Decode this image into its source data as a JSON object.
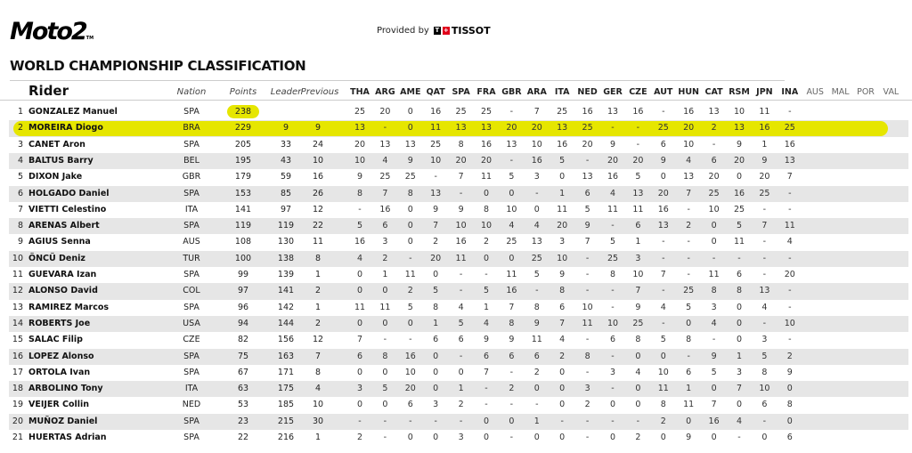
{
  "header": {
    "logo": "Moto2",
    "provided_by": "Provided by",
    "sponsor": "TISSOT",
    "title": "WORLD CHAMPIONSHIP CLASSIFICATION"
  },
  "colors": {
    "highlight": "#e6e600",
    "stripe": "#e6e6e6"
  },
  "columns": {
    "rider": "Rider",
    "nation": "Nation",
    "points": "Points",
    "leader": "Leader",
    "previous": "Previous",
    "races": [
      "THA",
      "ARG",
      "AME",
      "QAT",
      "SPA",
      "FRA",
      "GBR",
      "ARA",
      "ITA",
      "NED",
      "GER",
      "CZE",
      "AUT",
      "HUN",
      "CAT",
      "RSM",
      "JPN",
      "INA",
      "AUS",
      "MAL",
      "POR",
      "VAL"
    ]
  },
  "highlighted_rider_pos": 2,
  "rows": [
    {
      "pos": "1",
      "name": "GONZALEZ Manuel",
      "nation": "SPA",
      "points": "238",
      "leader": "",
      "previous": "",
      "results": [
        "25",
        "20",
        "0",
        "16",
        "25",
        "25",
        "-",
        "7",
        "25",
        "16",
        "13",
        "16",
        "-",
        "16",
        "13",
        "10",
        "11",
        "-"
      ]
    },
    {
      "pos": "2",
      "name": "MOREIRA Diogo",
      "nation": "BRA",
      "points": "229",
      "leader": "9",
      "previous": "9",
      "results": [
        "13",
        "-",
        "0",
        "11",
        "13",
        "13",
        "20",
        "20",
        "13",
        "25",
        "-",
        "-",
        "25",
        "20",
        "2",
        "13",
        "16",
        "25"
      ]
    },
    {
      "pos": "3",
      "name": "CANET Aron",
      "nation": "SPA",
      "points": "205",
      "leader": "33",
      "previous": "24",
      "results": [
        "20",
        "13",
        "13",
        "25",
        "8",
        "16",
        "13",
        "10",
        "16",
        "20",
        "9",
        "-",
        "6",
        "10",
        "-",
        "9",
        "1",
        "16"
      ]
    },
    {
      "pos": "4",
      "name": "BALTUS Barry",
      "nation": "BEL",
      "points": "195",
      "leader": "43",
      "previous": "10",
      "results": [
        "10",
        "4",
        "9",
        "10",
        "20",
        "20",
        "-",
        "16",
        "5",
        "-",
        "20",
        "20",
        "9",
        "4",
        "6",
        "20",
        "9",
        "13"
      ]
    },
    {
      "pos": "5",
      "name": "DIXON Jake",
      "nation": "GBR",
      "points": "179",
      "leader": "59",
      "previous": "16",
      "results": [
        "9",
        "25",
        "25",
        "-",
        "7",
        "11",
        "5",
        "3",
        "0",
        "13",
        "16",
        "5",
        "0",
        "13",
        "20",
        "0",
        "20",
        "7"
      ]
    },
    {
      "pos": "6",
      "name": "HOLGADO Daniel",
      "nation": "SPA",
      "points": "153",
      "leader": "85",
      "previous": "26",
      "results": [
        "8",
        "7",
        "8",
        "13",
        "-",
        "0",
        "0",
        "-",
        "1",
        "6",
        "4",
        "13",
        "20",
        "7",
        "25",
        "16",
        "25",
        "-"
      ]
    },
    {
      "pos": "7",
      "name": "VIETTI Celestino",
      "nation": "ITA",
      "points": "141",
      "leader": "97",
      "previous": "12",
      "results": [
        "-",
        "16",
        "0",
        "9",
        "9",
        "8",
        "10",
        "0",
        "11",
        "5",
        "11",
        "11",
        "16",
        "-",
        "10",
        "25",
        "-",
        "-"
      ]
    },
    {
      "pos": "8",
      "name": "ARENAS Albert",
      "nation": "SPA",
      "points": "119",
      "leader": "119",
      "previous": "22",
      "results": [
        "5",
        "6",
        "0",
        "7",
        "10",
        "10",
        "4",
        "4",
        "20",
        "9",
        "-",
        "6",
        "13",
        "2",
        "0",
        "5",
        "7",
        "11"
      ]
    },
    {
      "pos": "9",
      "name": "AGIUS Senna",
      "nation": "AUS",
      "points": "108",
      "leader": "130",
      "previous": "11",
      "results": [
        "16",
        "3",
        "0",
        "2",
        "16",
        "2",
        "25",
        "13",
        "3",
        "7",
        "5",
        "1",
        "-",
        "-",
        "0",
        "11",
        "-",
        "4"
      ]
    },
    {
      "pos": "10",
      "name": "ÖNCÜ Deniz",
      "nation": "TUR",
      "points": "100",
      "leader": "138",
      "previous": "8",
      "results": [
        "4",
        "2",
        "-",
        "20",
        "11",
        "0",
        "0",
        "25",
        "10",
        "-",
        "25",
        "3",
        "-",
        "-",
        "-",
        "-",
        "-",
        "-"
      ]
    },
    {
      "pos": "11",
      "name": "GUEVARA Izan",
      "nation": "SPA",
      "points": "99",
      "leader": "139",
      "previous": "1",
      "results": [
        "0",
        "1",
        "11",
        "0",
        "-",
        "-",
        "11",
        "5",
        "9",
        "-",
        "8",
        "10",
        "7",
        "-",
        "11",
        "6",
        "-",
        "20"
      ]
    },
    {
      "pos": "12",
      "name": "ALONSO David",
      "nation": "COL",
      "points": "97",
      "leader": "141",
      "previous": "2",
      "results": [
        "0",
        "0",
        "2",
        "5",
        "-",
        "5",
        "16",
        "-",
        "8",
        "-",
        "-",
        "7",
        "-",
        "25",
        "8",
        "8",
        "13",
        "-"
      ]
    },
    {
      "pos": "13",
      "name": "RAMIREZ Marcos",
      "nation": "SPA",
      "points": "96",
      "leader": "142",
      "previous": "1",
      "results": [
        "11",
        "11",
        "5",
        "8",
        "4",
        "1",
        "7",
        "8",
        "6",
        "10",
        "-",
        "9",
        "4",
        "5",
        "3",
        "0",
        "4",
        "-"
      ]
    },
    {
      "pos": "14",
      "name": "ROBERTS Joe",
      "nation": "USA",
      "points": "94",
      "leader": "144",
      "previous": "2",
      "results": [
        "0",
        "0",
        "0",
        "1",
        "5",
        "4",
        "8",
        "9",
        "7",
        "11",
        "10",
        "25",
        "-",
        "0",
        "4",
        "0",
        "-",
        "10"
      ]
    },
    {
      "pos": "15",
      "name": "SALAC Filip",
      "nation": "CZE",
      "points": "82",
      "leader": "156",
      "previous": "12",
      "results": [
        "7",
        "-",
        "-",
        "6",
        "6",
        "9",
        "9",
        "11",
        "4",
        "-",
        "6",
        "8",
        "5",
        "8",
        "-",
        "0",
        "3",
        "-"
      ]
    },
    {
      "pos": "16",
      "name": "LOPEZ Alonso",
      "nation": "SPA",
      "points": "75",
      "leader": "163",
      "previous": "7",
      "results": [
        "6",
        "8",
        "16",
        "0",
        "-",
        "6",
        "6",
        "6",
        "2",
        "8",
        "-",
        "0",
        "0",
        "-",
        "9",
        "1",
        "5",
        "2"
      ]
    },
    {
      "pos": "17",
      "name": "ORTOLA Ivan",
      "nation": "SPA",
      "points": "67",
      "leader": "171",
      "previous": "8",
      "results": [
        "0",
        "0",
        "10",
        "0",
        "0",
        "7",
        "-",
        "2",
        "0",
        "-",
        "3",
        "4",
        "10",
        "6",
        "5",
        "3",
        "8",
        "9"
      ]
    },
    {
      "pos": "18",
      "name": "ARBOLINO Tony",
      "nation": "ITA",
      "points": "63",
      "leader": "175",
      "previous": "4",
      "results": [
        "3",
        "5",
        "20",
        "0",
        "1",
        "-",
        "2",
        "0",
        "0",
        "3",
        "-",
        "0",
        "11",
        "1",
        "0",
        "7",
        "10",
        "0"
      ]
    },
    {
      "pos": "19",
      "name": "VEIJER Collin",
      "nation": "NED",
      "points": "53",
      "leader": "185",
      "previous": "10",
      "results": [
        "0",
        "0",
        "6",
        "3",
        "2",
        "-",
        "-",
        "-",
        "0",
        "2",
        "0",
        "0",
        "8",
        "11",
        "7",
        "0",
        "6",
        "8"
      ]
    },
    {
      "pos": "20",
      "name": "MUÑOZ Daniel",
      "nation": "SPA",
      "points": "23",
      "leader": "215",
      "previous": "30",
      "results": [
        "-",
        "-",
        "-",
        "-",
        "-",
        "0",
        "0",
        "1",
        "-",
        "-",
        "-",
        "-",
        "2",
        "0",
        "16",
        "4",
        "-",
        "0"
      ]
    },
    {
      "pos": "21",
      "name": "HUERTAS Adrian",
      "nation": "SPA",
      "points": "22",
      "leader": "216",
      "previous": "1",
      "results": [
        "2",
        "-",
        "0",
        "0",
        "3",
        "0",
        "-",
        "0",
        "0",
        "-",
        "0",
        "2",
        "0",
        "9",
        "0",
        "-",
        "0",
        "6"
      ]
    }
  ]
}
